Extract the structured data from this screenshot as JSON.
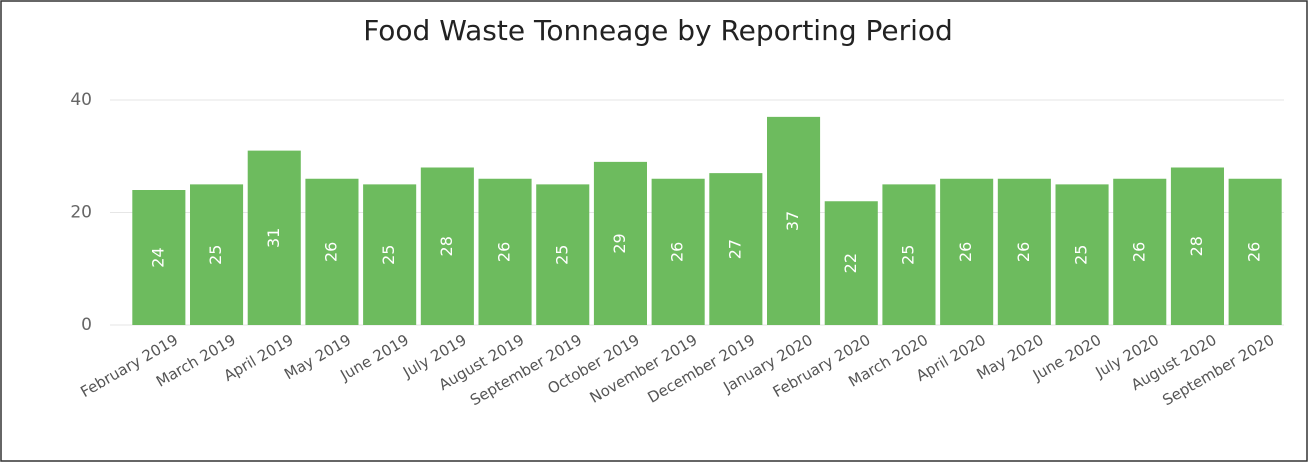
{
  "chart_data": {
    "type": "bar",
    "title": "Food Waste Tonneage by Reporting Period",
    "categories": [
      "February 2019",
      "March 2019",
      "April 2019",
      "May 2019",
      "June 2019",
      "July 2019",
      "August 2019",
      "September 2019",
      "October 2019",
      "November 2019",
      "December 2019",
      "January 2020",
      "February 2020",
      "March 2020",
      "April 2020",
      "May 2020",
      "June 2020",
      "July 2020",
      "August 2020",
      "September 2020"
    ],
    "values": [
      24,
      25,
      31,
      26,
      25,
      28,
      26,
      25,
      29,
      26,
      27,
      37,
      22,
      25,
      26,
      26,
      25,
      26,
      28,
      26
    ],
    "color": "#6dbb5e",
    "ylim": [
      0,
      40
    ],
    "yticks": [
      0,
      20,
      40
    ],
    "grid": true
  }
}
